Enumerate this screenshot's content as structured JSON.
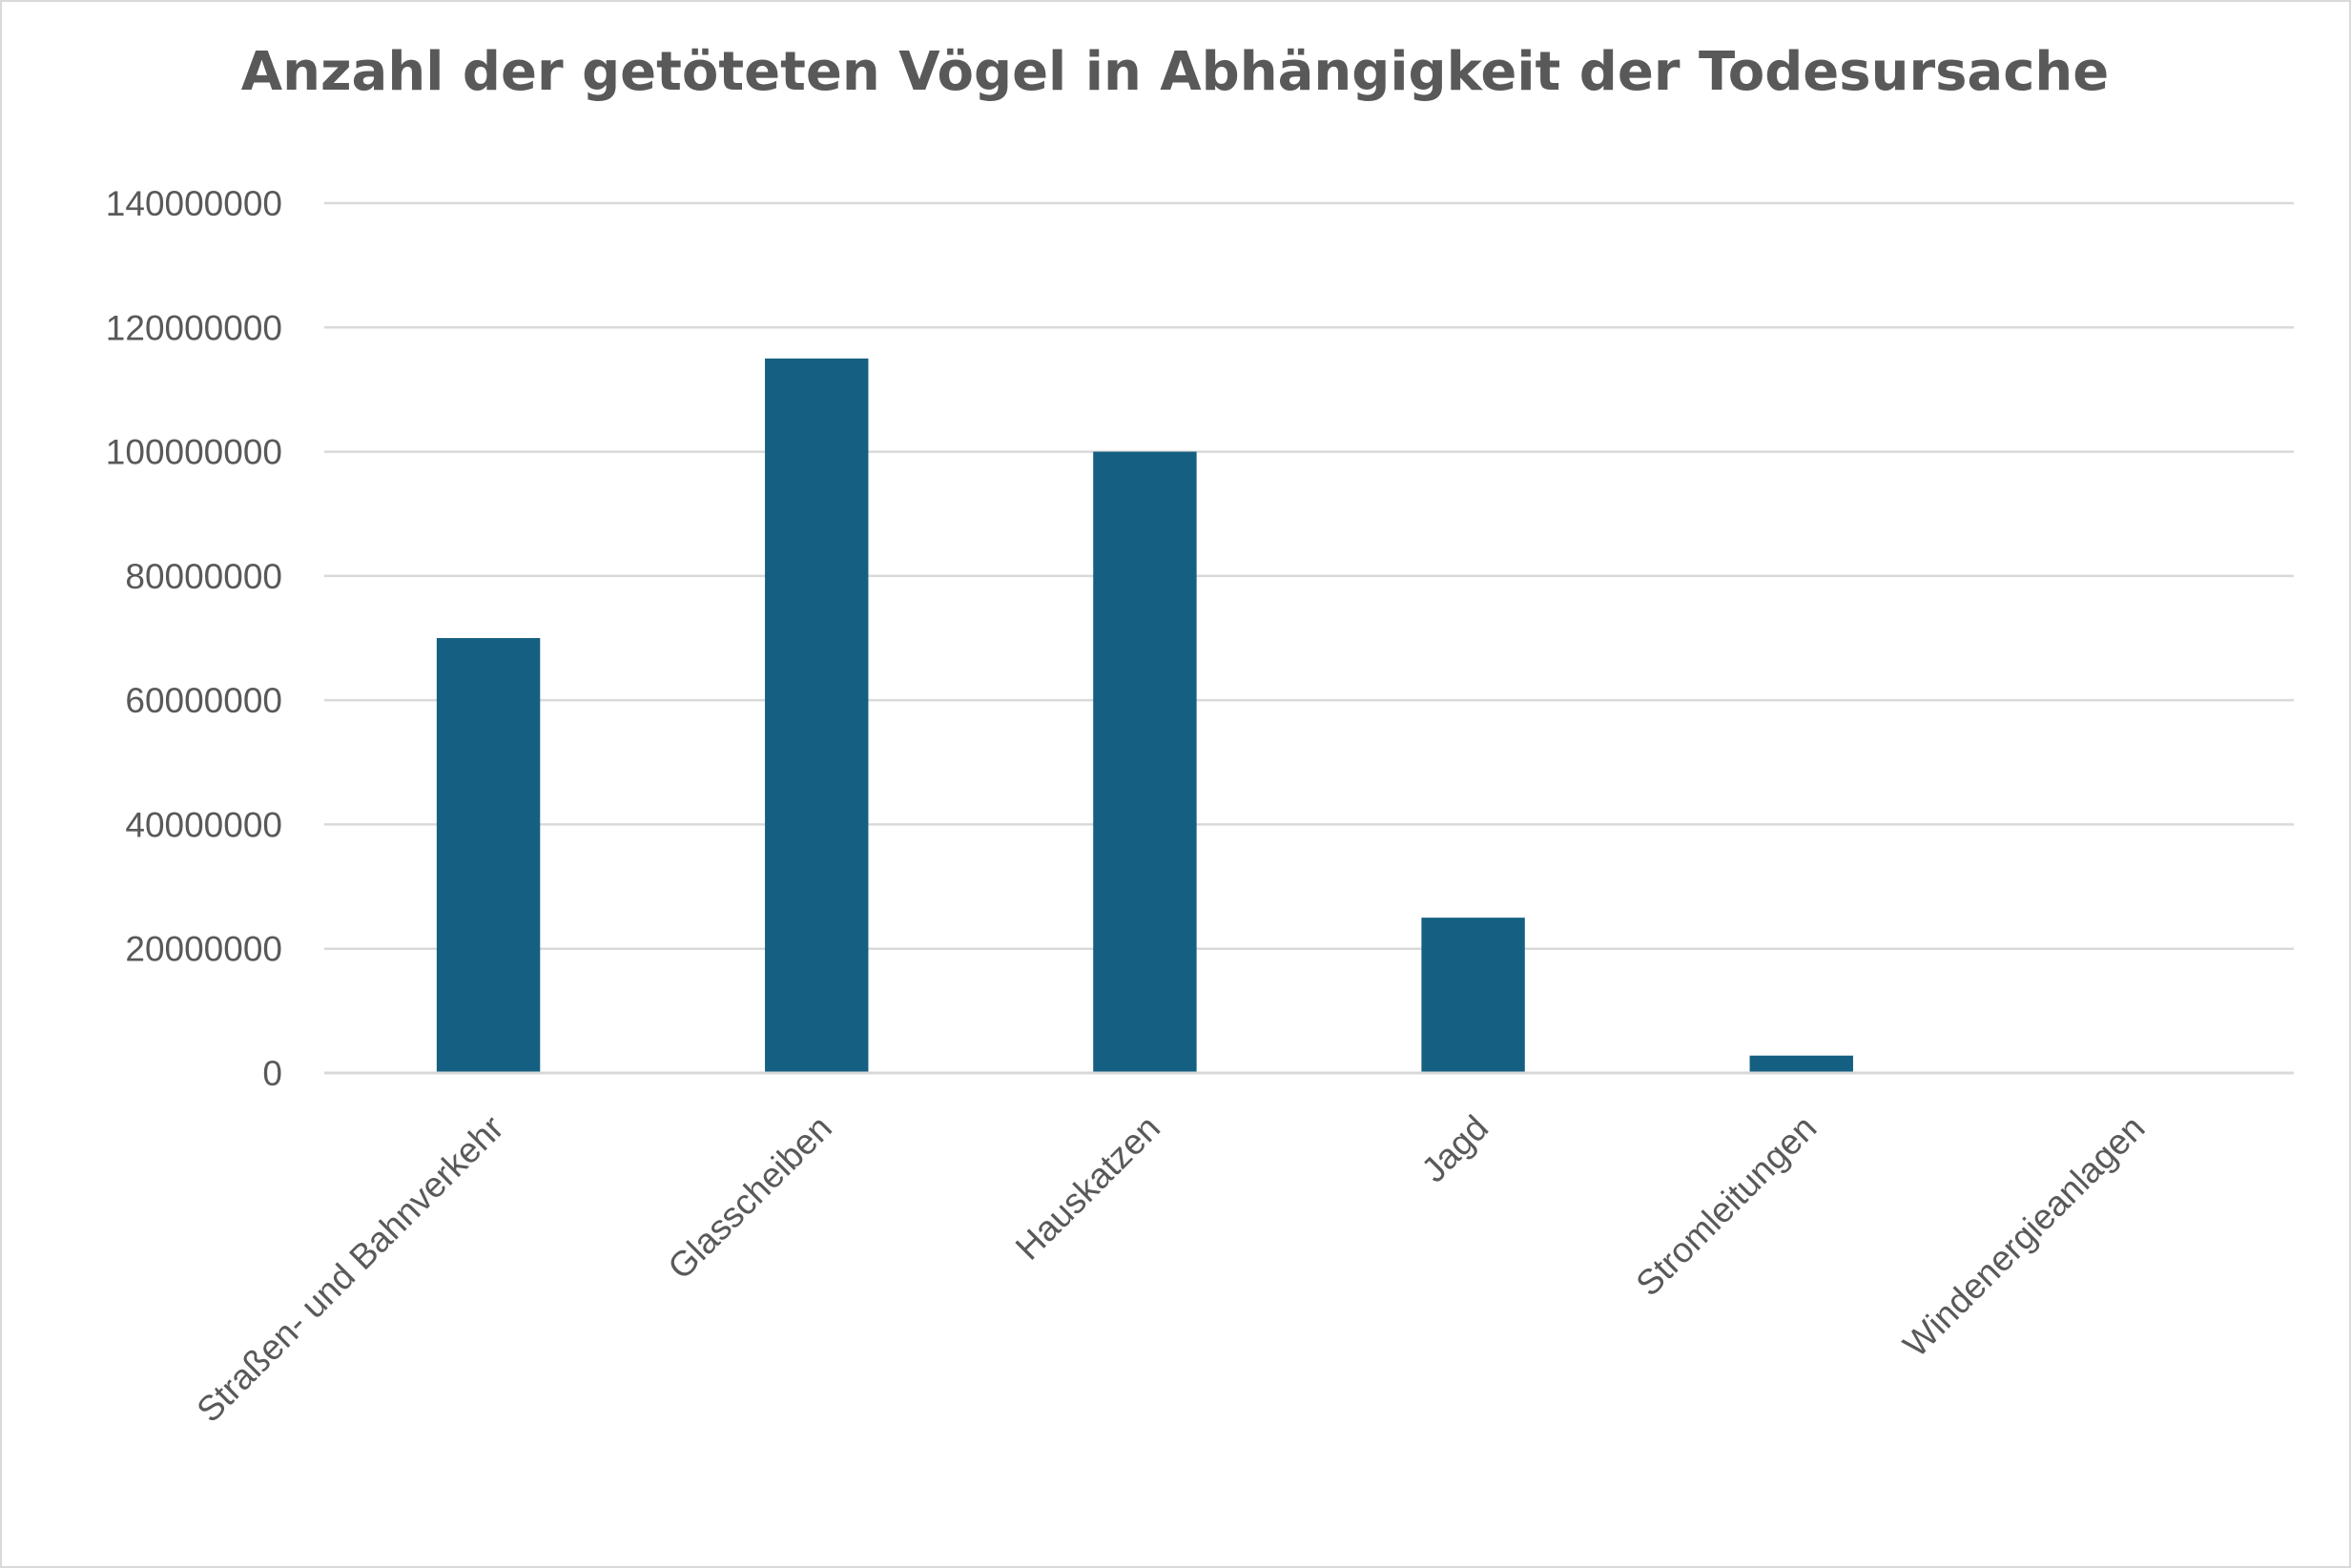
{
  "chart_data": {
    "type": "bar",
    "title": "Anzahl der getöteten Vögel in Abhängigkeit der Todesursache",
    "xlabel": "",
    "ylabel": "",
    "categories": [
      "Straßen- und Bahnverkehr",
      "Glasscheiben",
      "Hauskatzen",
      "Jagd",
      "Stromleitungen",
      "Windenergieanlagen"
    ],
    "values": [
      70000000,
      115000000,
      100000000,
      25000000,
      2800000,
      100000
    ],
    "ylim": [
      0,
      140000000
    ],
    "yticks": [
      "0",
      "20000000",
      "40000000",
      "60000000",
      "80000000",
      "100000000",
      "120000000",
      "140000000"
    ],
    "grid": true,
    "legend": "none",
    "bar_color": "#156082"
  }
}
